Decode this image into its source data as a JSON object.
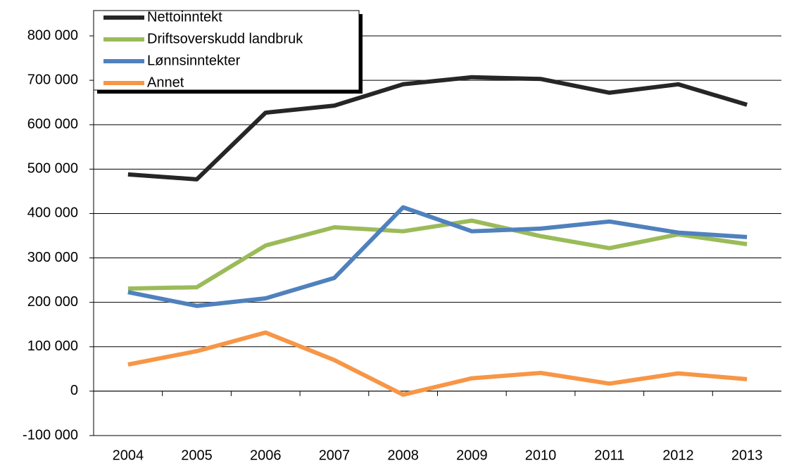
{
  "chart_data": {
    "type": "line",
    "categories": [
      "2004",
      "2005",
      "2006",
      "2007",
      "2008",
      "2009",
      "2010",
      "2011",
      "2012",
      "2013"
    ],
    "series": [
      {
        "name": "Nettoinntekt",
        "color": "#262626",
        "values": [
          488000,
          477000,
          627000,
          643000,
          691000,
          707000,
          703000,
          672000,
          691000,
          645000
        ]
      },
      {
        "name": "Driftsoverskudd landbruk",
        "color": "#9bbb59",
        "values": [
          231000,
          234000,
          328000,
          369000,
          360000,
          384000,
          349000,
          322000,
          353000,
          331000
        ]
      },
      {
        "name": "Lønnsinntekter",
        "color": "#4f81bd",
        "values": [
          223000,
          192000,
          209000,
          255000,
          414000,
          360000,
          366000,
          382000,
          357000,
          347000
        ]
      },
      {
        "name": "Annet",
        "color": "#f79646",
        "values": [
          60000,
          90000,
          132000,
          70000,
          -8000,
          29000,
          41000,
          17000,
          40000,
          27000
        ]
      }
    ],
    "ylim": [
      -100000,
      800000
    ],
    "yticks": [
      {
        "value": -100000,
        "label": "-100 000"
      },
      0,
      {
        "value": 100000,
        "label": "100 000"
      },
      {
        "value": 200000,
        "label": "200 000"
      },
      {
        "value": 300000,
        "label": "300 000"
      },
      {
        "value": 400000,
        "label": "400 000"
      },
      {
        "value": 500000,
        "label": "500 000"
      },
      {
        "value": 600000,
        "label": "600 000"
      },
      {
        "value": 700000,
        "label": "700 000"
      },
      {
        "value": 800000,
        "label": "800 000"
      }
    ],
    "grid": true,
    "legend": "top-left"
  }
}
